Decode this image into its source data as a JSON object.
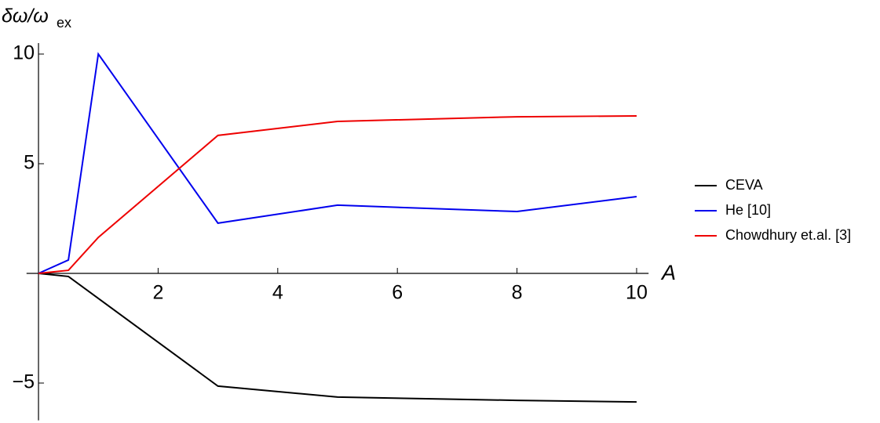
{
  "chart_data": {
    "type": "line",
    "y_label": "δω/ω",
    "y_label_sub": "ex",
    "x_label": "A",
    "x": [
      0,
      0.5,
      1,
      3,
      5,
      8,
      10
    ],
    "series": [
      {
        "name": "CEVA",
        "color": "#000000",
        "values": [
          0,
          -0.14,
          -1.14,
          -5.14,
          -5.64,
          -5.79,
          -5.86
        ]
      },
      {
        "name": "He [10]",
        "color": "#0000ee",
        "values": [
          0,
          0.61,
          10.0,
          2.29,
          3.11,
          2.82,
          3.5
        ]
      },
      {
        "name": "Chowdhury et.al. [3]",
        "color": "#ee0000",
        "values": [
          0,
          0.14,
          1.64,
          6.29,
          6.93,
          7.14,
          7.18
        ]
      }
    ],
    "xlim": [
      -0.2,
      10.2
    ],
    "ylim": [
      -6.7,
      10.5
    ],
    "xticks": [
      2,
      4,
      6,
      8,
      10
    ],
    "yticks": [
      {
        "value": -5,
        "label": "−5"
      },
      5,
      10
    ]
  }
}
